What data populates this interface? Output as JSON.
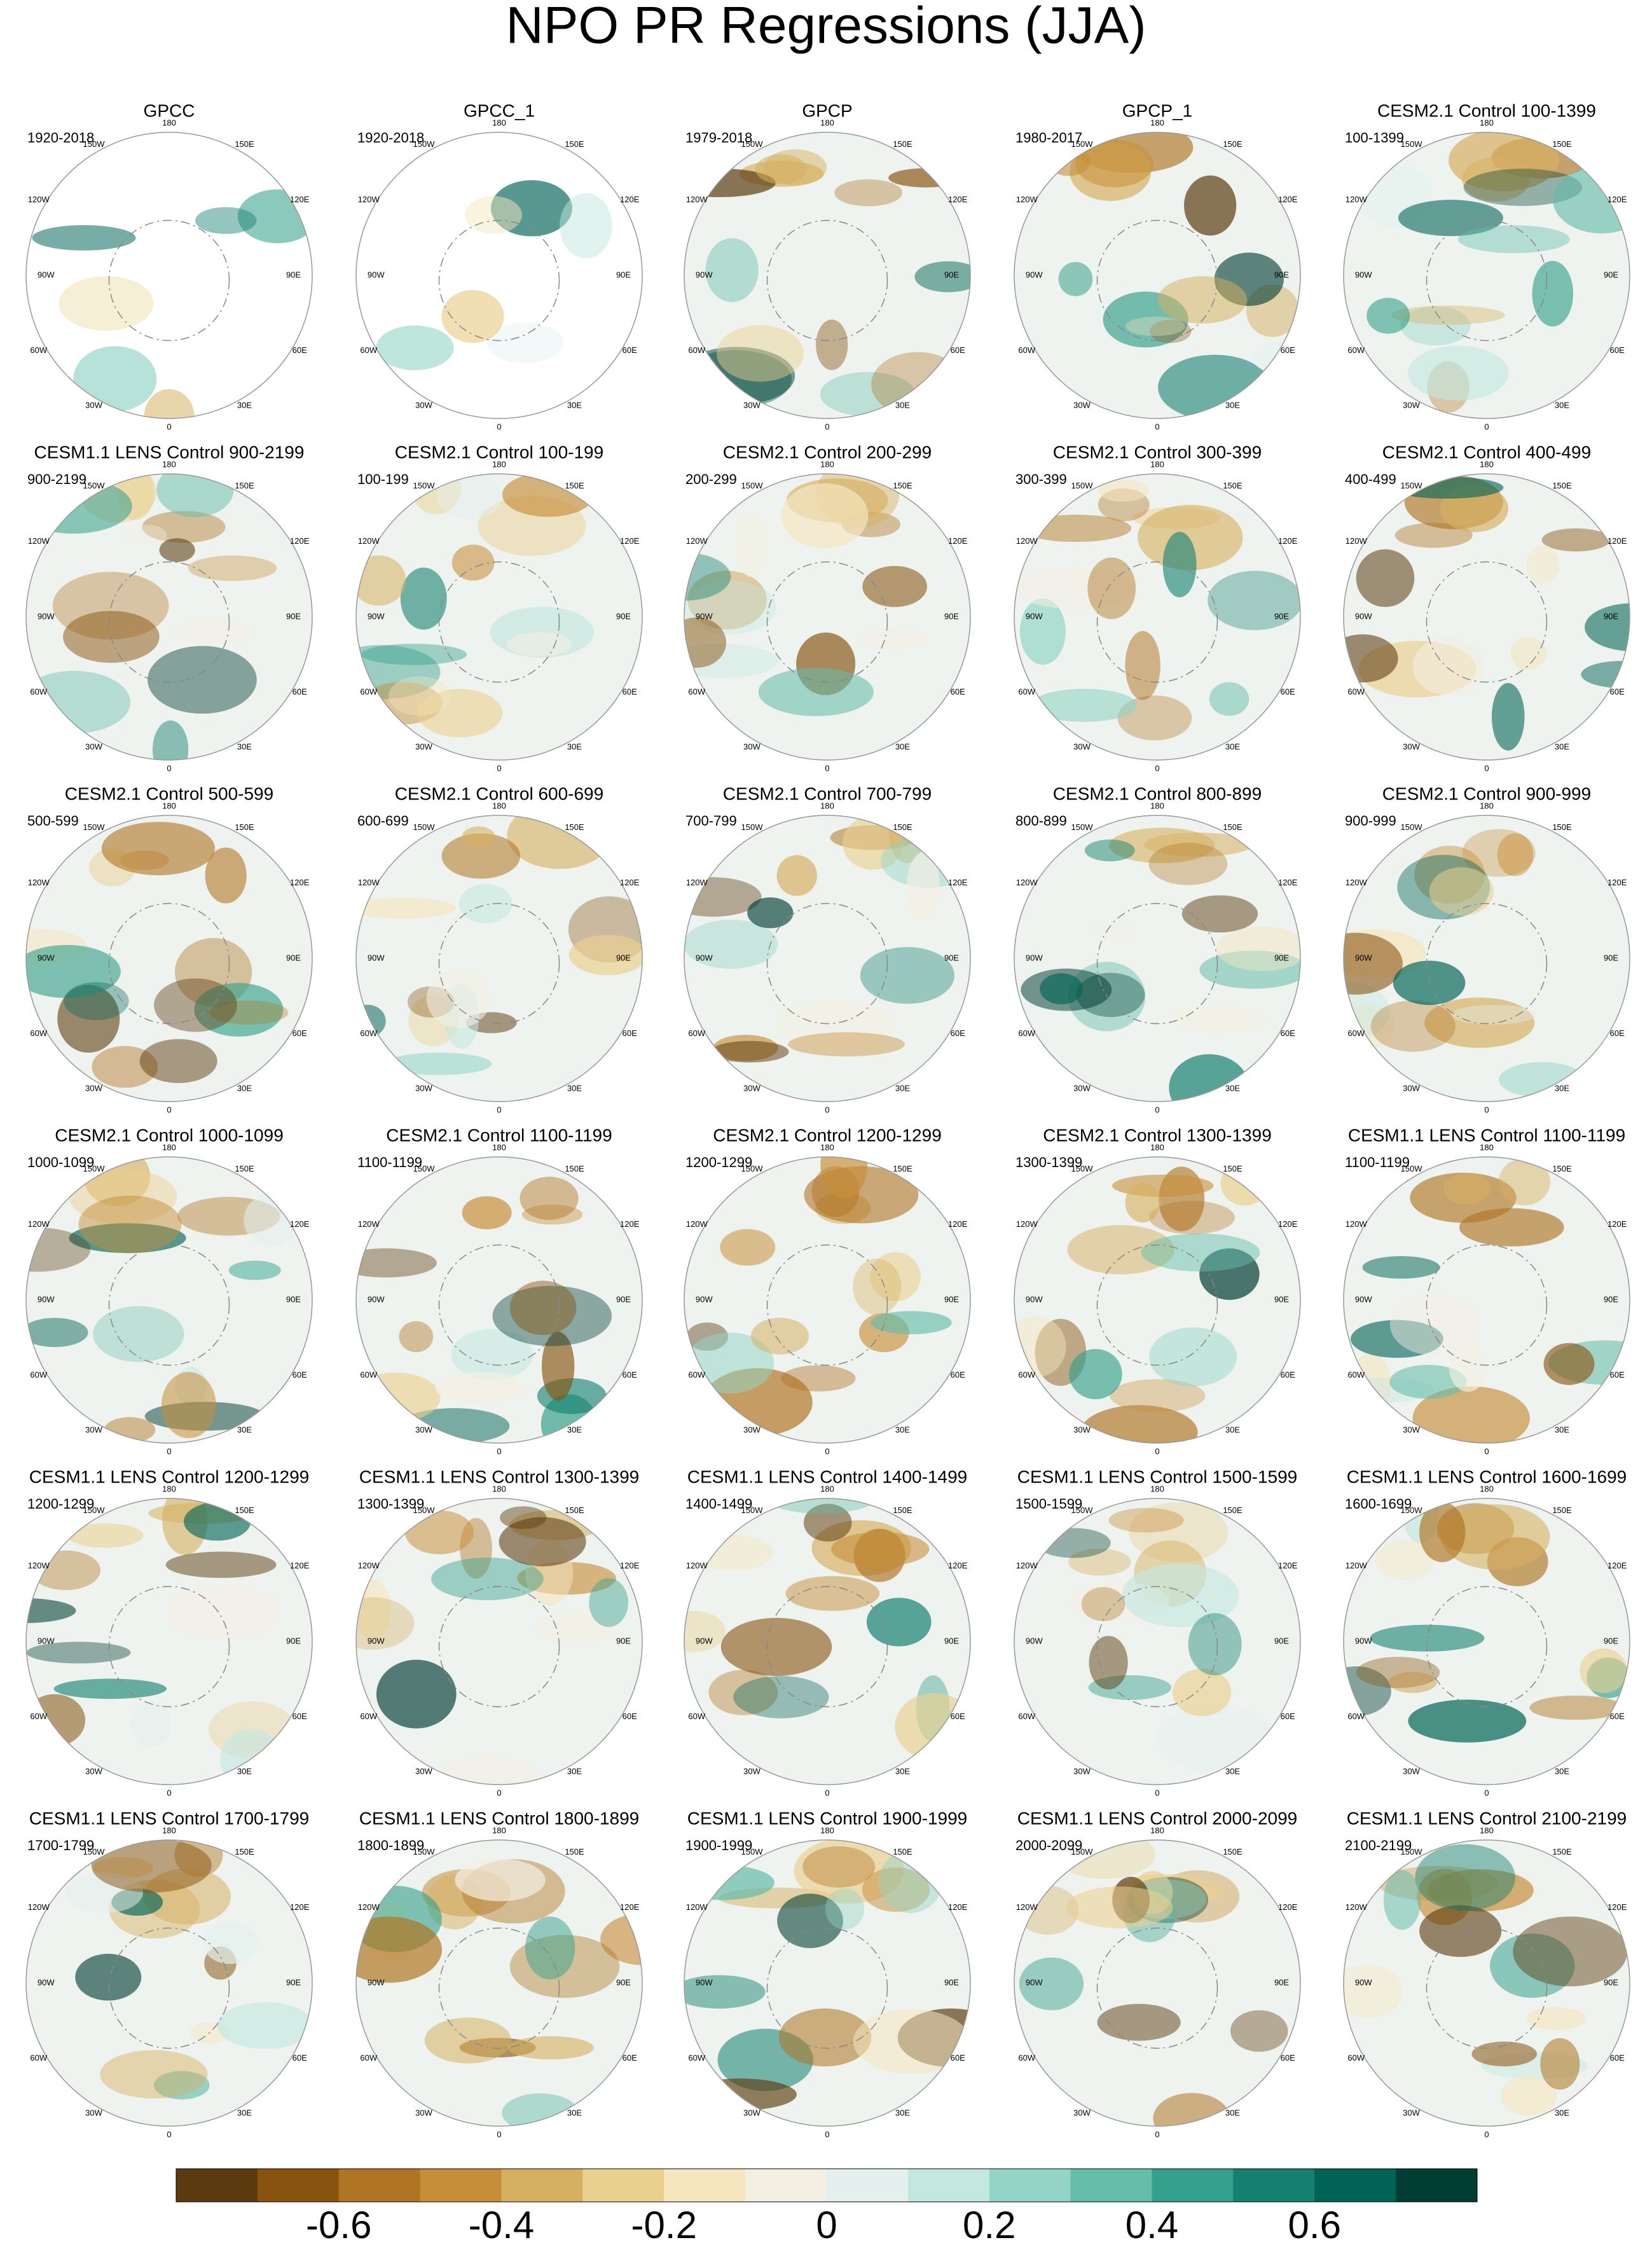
{
  "title": "NPO PR Regressions (JJA)",
  "lon_labels": [
    "180",
    "150E",
    "120E",
    "90E",
    "60E",
    "30E",
    "0",
    "30W",
    "60W",
    "90W",
    "120W",
    "150W"
  ],
  "panels": [
    {
      "title": "GPCC",
      "period": "1920-2018"
    },
    {
      "title": "GPCC_1",
      "period": "1920-2018"
    },
    {
      "title": "GPCP",
      "period": "1979-2018"
    },
    {
      "title": "GPCP_1",
      "period": "1980-2017"
    },
    {
      "title": "CESM2.1 Control 100-1399",
      "period": "100-1399"
    },
    {
      "title": "CESM1.1 LENS Control 900-2199",
      "period": "900-2199"
    },
    {
      "title": "CESM2.1 Control 100-199",
      "period": "100-199"
    },
    {
      "title": "CESM2.1 Control 200-299",
      "period": "200-299"
    },
    {
      "title": "CESM2.1 Control 300-399",
      "period": "300-399"
    },
    {
      "title": "CESM2.1 Control 400-499",
      "period": "400-499"
    },
    {
      "title": "CESM2.1 Control 500-599",
      "period": "500-599"
    },
    {
      "title": "CESM2.1 Control 600-699",
      "period": "600-699"
    },
    {
      "title": "CESM2.1 Control 700-799",
      "period": "700-799"
    },
    {
      "title": "CESM2.1 Control 800-899",
      "period": "800-899"
    },
    {
      "title": "CESM2.1 Control 900-999",
      "period": "900-999"
    },
    {
      "title": "CESM2.1 Control 1000-1099",
      "period": "1000-1099"
    },
    {
      "title": "CESM2.1 Control 1100-1199",
      "period": "1100-1199"
    },
    {
      "title": "CESM2.1 Control 1200-1299",
      "period": "1200-1299"
    },
    {
      "title": "CESM2.1 Control 1300-1399",
      "period": "1300-1399"
    },
    {
      "title": "CESM1.1 LENS Control 1100-1199",
      "period": "1100-1199"
    },
    {
      "title": "CESM1.1 LENS Control 1200-1299",
      "period": "1200-1299"
    },
    {
      "title": "CESM1.1 LENS Control 1300-1399",
      "period": "1300-1399"
    },
    {
      "title": "CESM1.1 LENS Control 1400-1499",
      "period": "1400-1499"
    },
    {
      "title": "CESM1.1 LENS Control 1500-1599",
      "period": "1500-1599"
    },
    {
      "title": "CESM1.1 LENS Control 1600-1699",
      "period": "1600-1699"
    },
    {
      "title": "CESM1.1 LENS Control 1700-1799",
      "period": "1700-1799"
    },
    {
      "title": "CESM1.1 LENS Control 1800-1899",
      "period": "1800-1899"
    },
    {
      "title": "CESM1.1 LENS Control 1900-1999",
      "period": "1900-1999"
    },
    {
      "title": "CESM1.1 LENS Control 2000-2099",
      "period": "2000-2099"
    },
    {
      "title": "CESM1.1 LENS Control 2100-2199",
      "period": "2100-2199"
    }
  ],
  "colorbar": {
    "lim": [
      -0.8,
      0.8
    ],
    "ticks": [
      -0.6,
      -0.4,
      -0.2,
      0,
      0.2,
      0.4,
      0.6
    ],
    "colors": [
      "#5a3a0e",
      "#87530f",
      "#b07524",
      "#c78e3a",
      "#d6b061",
      "#ead08f",
      "#f5e6c0",
      "#f4efe3",
      "#e3f0ee",
      "#c3e8e0",
      "#93d4c6",
      "#64bca9",
      "#35a08b",
      "#138070",
      "#006356",
      "#003d33"
    ]
  }
}
